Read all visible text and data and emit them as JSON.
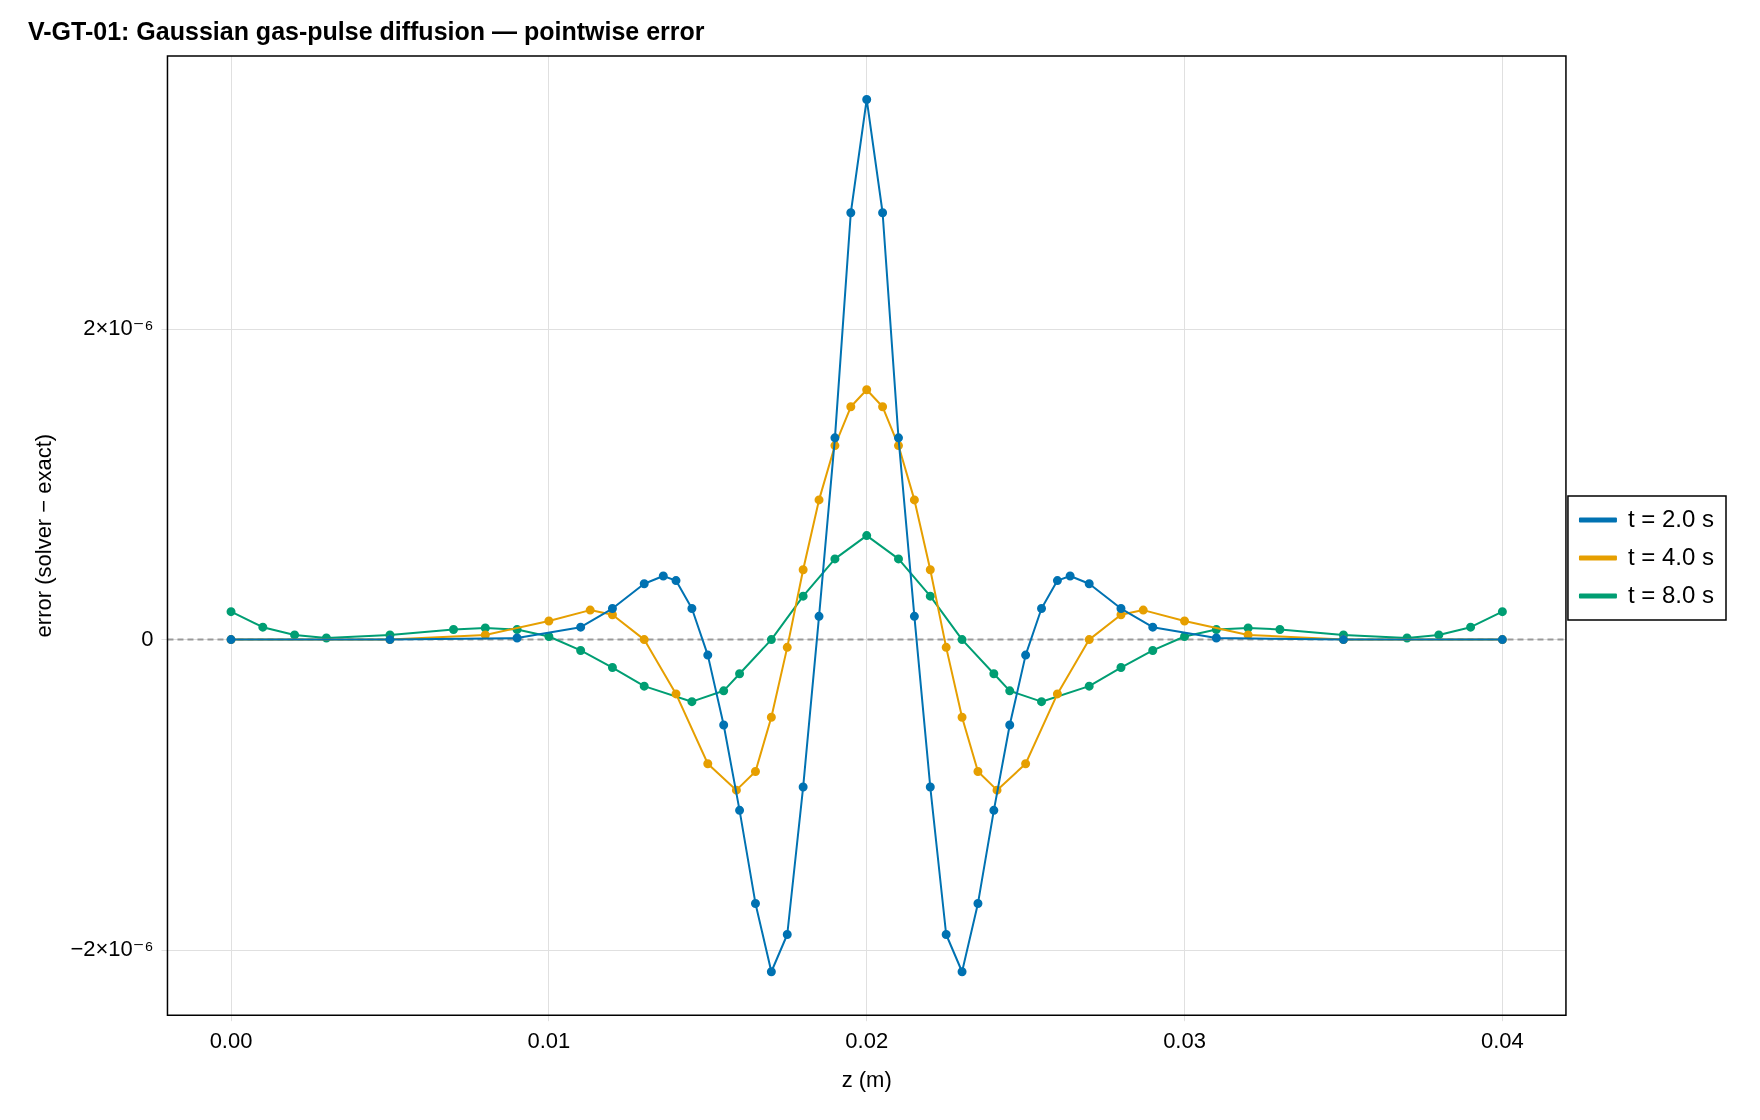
{
  "chart_data": {
    "type": "line",
    "title": "V-GT-01: Gaussian gas-pulse diffusion — pointwise error",
    "xlabel": "z (m)",
    "ylabel": "error (solver − exact)",
    "xlim": [
      -0.002,
      0.042
    ],
    "ylim": [
      -2.42e-06,
      3.76e-06
    ],
    "xticks": [
      {
        "value": 0,
        "label": "0.00"
      },
      {
        "value": 0.01,
        "label": "0.01"
      },
      {
        "value": 0.02,
        "label": "0.02"
      },
      {
        "value": 0.03,
        "label": "0.03"
      },
      {
        "value": 0.04,
        "label": "0.04"
      }
    ],
    "yticks": [
      {
        "value": -2e-06,
        "label": "−2×10⁻⁶"
      },
      {
        "value": 0,
        "label": "0"
      },
      {
        "value": 2e-06,
        "label": "2×10⁻⁶"
      }
    ],
    "grid": true,
    "legend": "right",
    "marker": "circle",
    "line_style": "solid",
    "ref_lines": [
      {
        "axis": "y",
        "value": 0,
        "color": "#999999",
        "line_style": "dashed"
      }
    ],
    "series": [
      {
        "name": "t = 2.0 s",
        "color": "#0072b2",
        "x": [
          0,
          0.005,
          0.009,
          0.011,
          0.012,
          0.013,
          0.0136,
          0.014,
          0.0145,
          0.015,
          0.0155,
          0.016,
          0.0165,
          0.017,
          0.0175,
          0.018,
          0.0185,
          0.019,
          0.0195,
          0.02,
          0.0205,
          0.021,
          0.0215,
          0.022,
          0.0225,
          0.023,
          0.0235,
          0.024,
          0.0245,
          0.025,
          0.0255,
          0.026,
          0.0264,
          0.027,
          0.028,
          0.029,
          0.031,
          0.035,
          0.04
        ],
        "values": [
          0,
          0,
          1e-08,
          8e-08,
          2e-07,
          3.6e-07,
          4.1e-07,
          3.8e-07,
          2e-07,
          -1e-07,
          -5.5e-07,
          -1.1e-06,
          -1.7e-06,
          -2.14e-06,
          -1.9e-06,
          -9.5e-07,
          1.5e-07,
          1.3e-06,
          2.75e-06,
          3.48e-06,
          2.75e-06,
          1.3e-06,
          1.5e-07,
          -9.5e-07,
          -1.9e-06,
          -2.14e-06,
          -1.7e-06,
          -1.1e-06,
          -5.5e-07,
          -1e-07,
          2e-07,
          3.8e-07,
          4.1e-07,
          3.6e-07,
          2e-07,
          8e-08,
          1e-08,
          0,
          0
        ]
      },
      {
        "name": "t = 4.0 s",
        "color": "#e69f00",
        "x": [
          0,
          0.005,
          0.008,
          0.01,
          0.0113,
          0.012,
          0.013,
          0.014,
          0.015,
          0.0159,
          0.0165,
          0.017,
          0.0175,
          0.018,
          0.0185,
          0.019,
          0.0195,
          0.02,
          0.0205,
          0.021,
          0.0215,
          0.022,
          0.0225,
          0.023,
          0.0235,
          0.0241,
          0.025,
          0.026,
          0.027,
          0.028,
          0.0287,
          0.03,
          0.032,
          0.035,
          0.04
        ],
        "values": [
          0,
          0,
          3e-08,
          1.2e-07,
          1.9e-07,
          1.6e-07,
          0,
          -3.5e-07,
          -8e-07,
          -9.7e-07,
          -8.5e-07,
          -5e-07,
          -5e-08,
          4.5e-07,
          9e-07,
          1.25e-06,
          1.5e-06,
          1.61e-06,
          1.5e-06,
          1.25e-06,
          9e-07,
          4.5e-07,
          -5e-08,
          -5e-07,
          -8.5e-07,
          -9.7e-07,
          -8e-07,
          -3.5e-07,
          0,
          1.6e-07,
          1.9e-07,
          1.2e-07,
          3e-08,
          0,
          0
        ]
      },
      {
        "name": "t = 8.0 s",
        "color": "#009e73",
        "x": [
          0,
          0.001,
          0.002,
          0.003,
          0.005,
          0.007,
          0.008,
          0.009,
          0.01,
          0.011,
          0.012,
          0.013,
          0.0145,
          0.0155,
          0.016,
          0.017,
          0.018,
          0.019,
          0.02,
          0.021,
          0.022,
          0.023,
          0.024,
          0.0245,
          0.0255,
          0.027,
          0.028,
          0.029,
          0.03,
          0.031,
          0.032,
          0.033,
          0.035,
          0.037,
          0.038,
          0.039,
          0.04
        ],
        "values": [
          1.8e-07,
          8e-08,
          3e-08,
          1e-08,
          3e-08,
          6.5e-08,
          7.5e-08,
          6.5e-08,
          2e-08,
          -7e-08,
          -1.8e-07,
          -3e-07,
          -4e-07,
          -3.3e-07,
          -2.2e-07,
          0,
          2.8e-07,
          5.2e-07,
          6.7e-07,
          5.2e-07,
          2.8e-07,
          0,
          -2.2e-07,
          -3.3e-07,
          -4e-07,
          -3e-07,
          -1.8e-07,
          -7e-08,
          2e-08,
          6.5e-08,
          7.5e-08,
          6.5e-08,
          3e-08,
          1e-08,
          3e-08,
          8e-08,
          1.8e-07
        ]
      }
    ]
  }
}
